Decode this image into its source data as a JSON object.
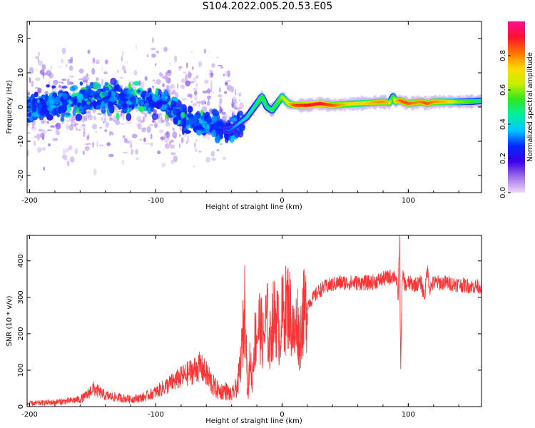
{
  "title": "S104.2022.005.20.53.E05",
  "chart_data": [
    {
      "type": "heatmap",
      "xlabel": "Height of straight line (km)",
      "ylabel": "Frequency (Hz)",
      "xlim": [
        -202,
        158
      ],
      "ylim": [
        -25,
        25
      ],
      "xticks": [
        -200,
        -100,
        0,
        100
      ],
      "yticks": [
        -20,
        -10,
        0,
        10,
        20
      ],
      "colorbar": {
        "label": "Normalized spectral amplitude",
        "ticks": [
          0.0,
          0.2,
          0.4,
          0.6,
          0.8
        ],
        "range": [
          0,
          1
        ],
        "colors": [
          "#f0d8fa",
          "#a070e8",
          "#3a00e8",
          "#0028ff",
          "#00c8ff",
          "#00f0a0",
          "#30e820",
          "#c8f000",
          "#ffd800",
          "#ff7000",
          "#ff1030",
          "#ff1090"
        ]
      },
      "ridge": {
        "x": [
          -200,
          -180,
          -160,
          -140,
          -120,
          -100,
          -90,
          -80,
          -70,
          -60,
          -50,
          -42,
          -35,
          -28,
          -24,
          -20,
          -16,
          -12,
          -8,
          -4,
          0,
          5,
          10,
          20,
          30,
          40,
          50,
          60,
          70,
          80,
          85,
          88,
          90,
          93,
          96,
          100,
          105,
          110,
          115,
          120,
          130,
          140,
          150,
          158
        ],
        "y": [
          0,
          1,
          2,
          3,
          2,
          2,
          1,
          -3,
          -5,
          -4,
          -6,
          -7,
          -5,
          -3,
          -1,
          1,
          3,
          0,
          -1,
          1,
          3,
          1,
          0.5,
          0.5,
          1,
          0.5,
          0.8,
          1,
          1.2,
          1.5,
          1.2,
          3,
          1.5,
          2,
          1.5,
          1,
          1.2,
          1.5,
          1,
          1.5,
          1.5,
          1.5,
          1.6,
          1.8
        ],
        "amplitude": [
          0.3,
          0.3,
          0.35,
          0.35,
          0.35,
          0.35,
          0.3,
          0.3,
          0.3,
          0.3,
          0.3,
          0.3,
          0.35,
          0.4,
          0.45,
          0.5,
          0.55,
          0.5,
          0.5,
          0.55,
          0.6,
          0.7,
          0.85,
          0.9,
          0.9,
          0.85,
          0.75,
          0.7,
          0.75,
          0.8,
          0.75,
          0.5,
          0.7,
          0.8,
          0.85,
          0.85,
          0.8,
          0.8,
          0.85,
          0.8,
          0.75,
          0.6,
          0.55,
          0.5
        ]
      }
    },
    {
      "type": "line",
      "xlabel": "Height of straight line (km)",
      "ylabel": "SNR (10 * v/v)",
      "xlim": [
        -202,
        158
      ],
      "ylim": [
        0,
        470
      ],
      "xticks": [
        -200,
        -100,
        0,
        100
      ],
      "yticks": [
        0,
        100,
        200,
        300,
        400
      ],
      "color": "#ff3333",
      "series": [
        {
          "x": [
            -202,
            -190,
            -180,
            -170,
            -160,
            -155,
            -150,
            -145,
            -140,
            -130,
            -120,
            -110,
            -100,
            -95,
            -90,
            -85,
            -80,
            -75,
            -70,
            -65,
            -60,
            -55,
            -50,
            -45,
            -40,
            -35,
            -32,
            -30,
            -29,
            -28,
            -27,
            -26,
            -25,
            -24,
            -22,
            -20,
            -18,
            -15,
            -12,
            -10,
            -8,
            -5,
            -2,
            0,
            5,
            8,
            10,
            12,
            14,
            16,
            18,
            20,
            25,
            30,
            35,
            40,
            45,
            50,
            60,
            70,
            80,
            85,
            90,
            92,
            93,
            94,
            95,
            96,
            97,
            98,
            100,
            105,
            110,
            113,
            115,
            117,
            120,
            130,
            140,
            150,
            158
          ],
          "y": [
            8,
            10,
            12,
            15,
            20,
            30,
            50,
            40,
            30,
            25,
            20,
            25,
            40,
            50,
            60,
            70,
            80,
            90,
            100,
            110,
            90,
            60,
            40,
            45,
            30,
            60,
            150,
            250,
            330,
            120,
            20,
            100,
            150,
            50,
            180,
            200,
            230,
            180,
            250,
            160,
            230,
            250,
            200,
            250,
            280,
            230,
            180,
            250,
            170,
            250,
            260,
            280,
            300,
            320,
            330,
            335,
            340,
            340,
            340,
            340,
            350,
            355,
            360,
            300,
            460,
            110,
            320,
            360,
            340,
            330,
            340,
            335,
            340,
            300,
            380,
            325,
            340,
            340,
            335,
            330,
            330
          ]
        }
      ]
    }
  ]
}
